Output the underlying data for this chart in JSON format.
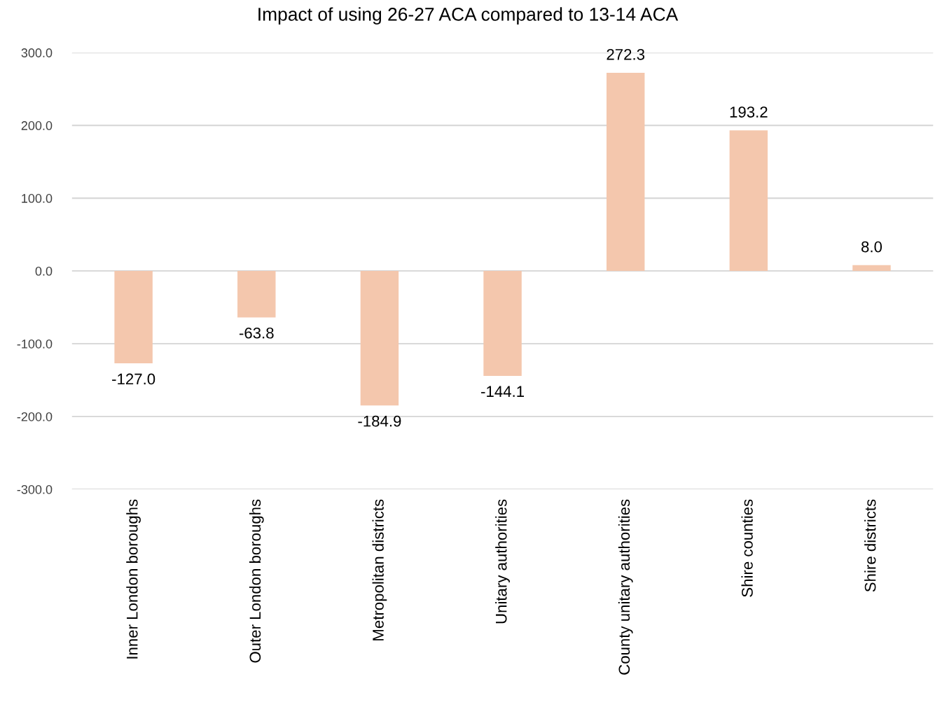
{
  "chart_data": {
    "type": "bar",
    "title": "Impact of using 26-27 ACA compared to 13-14 ACA",
    "categories": [
      "Inner London boroughs",
      "Outer London boroughs",
      "Metropolitan districts",
      "Unitary authorities",
      "County unitary authorities",
      "Shire counties",
      "Shire districts"
    ],
    "values": [
      -127.0,
      -63.8,
      -184.9,
      -144.1,
      272.3,
      193.2,
      8.0
    ],
    "value_labels": [
      "-127.0",
      "-63.8",
      "-184.9",
      "-144.1",
      "272.3",
      "193.2",
      "8.0"
    ],
    "color": "#f4c7ad",
    "ylim": [
      -300,
      300
    ],
    "yticks": [
      {
        "value": -300,
        "label": "-300.0"
      },
      {
        "value": -200,
        "label": "-200.0"
      },
      {
        "value": -100,
        "label": "-100.0"
      },
      {
        "value": 0,
        "label": "0.0"
      },
      {
        "value": 100,
        "label": "100.0"
      },
      {
        "value": 200,
        "label": "200.0"
      },
      {
        "value": 300,
        "label": "300.0"
      }
    ],
    "grid": "y",
    "legend": false
  }
}
